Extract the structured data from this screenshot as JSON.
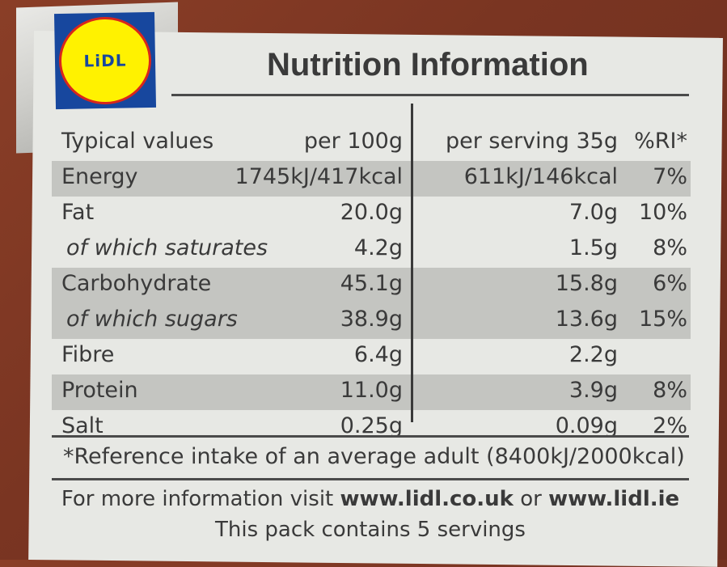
{
  "logo": {
    "text": "LiDL"
  },
  "title": "Nutrition Information",
  "header": {
    "label": "Typical values",
    "per100": "per 100g",
    "perServing": "per serving 35g",
    "ri": "%RI*"
  },
  "rows": [
    {
      "label": "Energy",
      "per100": "1745kJ/417kcal",
      "perServing": "611kJ/146kcal",
      "ri": "7%",
      "sub": false,
      "shade": true
    },
    {
      "label": "Fat",
      "per100": "20.0g",
      "perServing": "7.0g",
      "ri": "10%",
      "sub": false,
      "shade": false
    },
    {
      "label": "of which saturates",
      "per100": "4.2g",
      "perServing": "1.5g",
      "ri": "8%",
      "sub": true,
      "shade": false
    },
    {
      "label": "Carbohydrate",
      "per100": "45.1g",
      "perServing": "15.8g",
      "ri": "6%",
      "sub": false,
      "shade": true
    },
    {
      "label": "of which sugars",
      "per100": "38.9g",
      "perServing": "13.6g",
      "ri": "15%",
      "sub": true,
      "shade": true
    },
    {
      "label": "Fibre",
      "per100": "6.4g",
      "perServing": "2.2g",
      "ri": "",
      "sub": false,
      "shade": false
    },
    {
      "label": "Protein",
      "per100": "11.0g",
      "perServing": "3.9g",
      "ri": "8%",
      "sub": false,
      "shade": true
    },
    {
      "label": "Salt",
      "per100": "0.25g",
      "perServing": "0.09g",
      "ri": "2%",
      "sub": false,
      "shade": false
    }
  ],
  "reference": "*Reference intake of an average adult (8400kJ/2000kcal)",
  "more": {
    "prefix": "For more information visit",
    "link1": "www.lidl.co.uk",
    "or": "or",
    "link2": "www.lidl.ie",
    "servings": "This pack contains 5 servings"
  }
}
